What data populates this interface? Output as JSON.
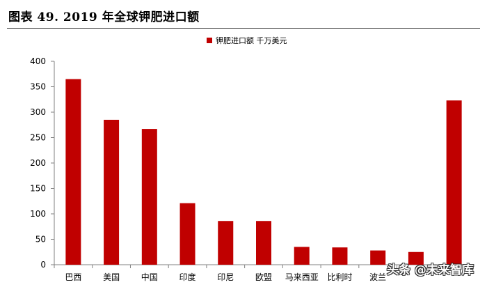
{
  "header": {
    "title": "图表 49. 2019 年全球钾肥进口额"
  },
  "chart_data": {
    "type": "bar",
    "title": "",
    "xlabel": "",
    "ylabel": "",
    "categories": [
      "巴西",
      "美国",
      "中国",
      "印度",
      "印尼",
      "欧盟",
      "马来西亚",
      "比利时",
      "波兰",
      "",
      ""
    ],
    "series": [
      {
        "name": "钾肥进口额 千万美元",
        "color": "#c00000",
        "values": [
          365,
          285,
          267,
          121,
          86,
          86,
          35,
          34,
          28,
          25,
          323
        ]
      }
    ],
    "ylim": [
      0,
      400
    ],
    "yticks": [
      0,
      50,
      100,
      150,
      200,
      250,
      300,
      350,
      400
    ],
    "grid": false,
    "legend": "top-center"
  },
  "watermark": {
    "text": "头条 @未来智库"
  }
}
